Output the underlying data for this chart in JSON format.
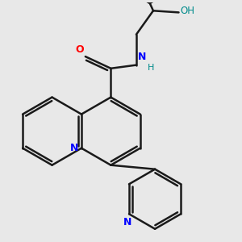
{
  "bg_color": "#e8e8e8",
  "bond_color": "#1a1a1a",
  "N_color": "#0000ff",
  "O_color": "#ff0000",
  "OH_color": "#008b8b",
  "bond_width": 1.8,
  "figsize": [
    3.0,
    3.0
  ],
  "dpi": 100,
  "xlim": [
    -2.5,
    3.5
  ],
  "ylim": [
    -3.5,
    3.5
  ]
}
